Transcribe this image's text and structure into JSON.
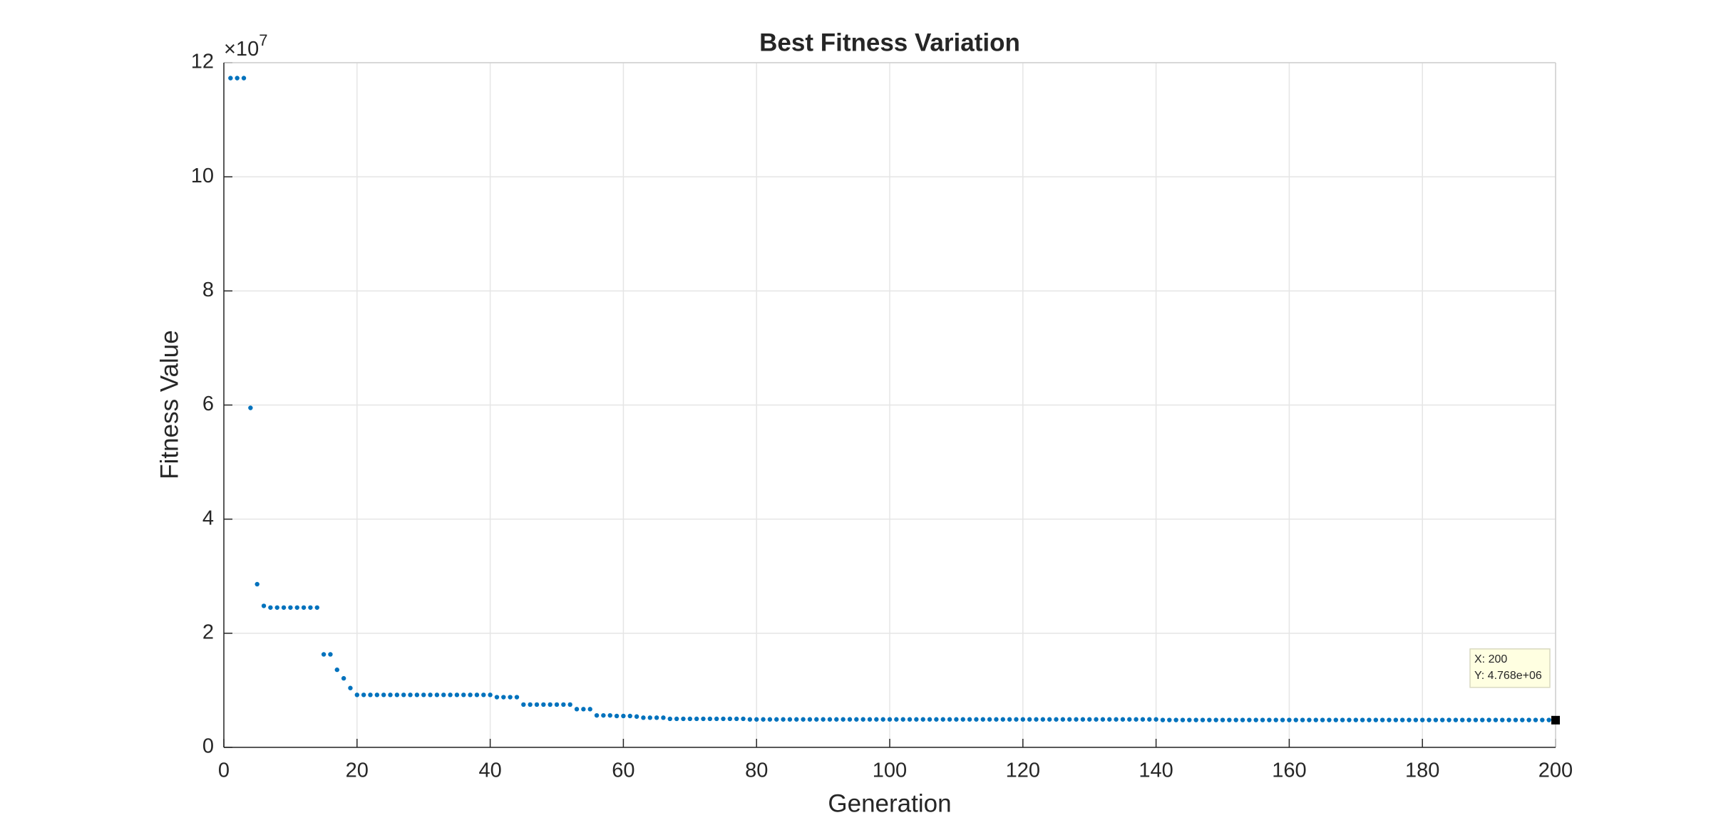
{
  "chart_data": {
    "type": "scatter",
    "title": "Best Fitness Variation",
    "x_label": "Generation",
    "y_label": "Fitness Value",
    "y_exponent": {
      "base": "×10",
      "power": "7"
    },
    "color": "#0072bd",
    "grid": true,
    "xlim": [
      0,
      200
    ],
    "xticks": [
      0,
      20,
      40,
      60,
      80,
      100,
      120,
      140,
      160,
      180,
      200
    ],
    "ylim": [
      0,
      12
    ],
    "yticks": [
      0,
      2,
      4,
      6,
      8,
      10,
      12
    ],
    "x": [
      1,
      2,
      3,
      4,
      5,
      6,
      7,
      8,
      9,
      10,
      11,
      12,
      13,
      14,
      15,
      16,
      17,
      18,
      19,
      20,
      21,
      22,
      23,
      24,
      25,
      26,
      27,
      28,
      29,
      30,
      31,
      32,
      33,
      34,
      35,
      36,
      37,
      38,
      39,
      40,
      41,
      42,
      43,
      44,
      45,
      46,
      47,
      48,
      49,
      50,
      51,
      52,
      53,
      54,
      55,
      56,
      57,
      58,
      59,
      60,
      61,
      62,
      63,
      64,
      65,
      66,
      67,
      68,
      69,
      70,
      71,
      72,
      73,
      74,
      75,
      76,
      77,
      78,
      79,
      80,
      81,
      82,
      83,
      84,
      85,
      86,
      87,
      88,
      89,
      90,
      91,
      92,
      93,
      94,
      95,
      96,
      97,
      98,
      99,
      100,
      101,
      102,
      103,
      104,
      105,
      106,
      107,
      108,
      109,
      110,
      111,
      112,
      113,
      114,
      115,
      116,
      117,
      118,
      119,
      120,
      121,
      122,
      123,
      124,
      125,
      126,
      127,
      128,
      129,
      130,
      131,
      132,
      133,
      134,
      135,
      136,
      137,
      138,
      139,
      140,
      141,
      142,
      143,
      144,
      145,
      146,
      147,
      148,
      149,
      150,
      151,
      152,
      153,
      154,
      155,
      156,
      157,
      158,
      159,
      160,
      161,
      162,
      163,
      164,
      165,
      166,
      167,
      168,
      169,
      170,
      171,
      172,
      173,
      174,
      175,
      176,
      177,
      178,
      179,
      180,
      181,
      182,
      183,
      184,
      185,
      186,
      187,
      188,
      189,
      190,
      191,
      192,
      193,
      194,
      195,
      196,
      197,
      198,
      199,
      200
    ],
    "values": [
      11.73,
      11.73,
      11.73,
      5.95,
      2.86,
      2.48,
      2.45,
      2.45,
      2.45,
      2.45,
      2.45,
      2.45,
      2.45,
      2.45,
      1.63,
      1.63,
      1.36,
      1.21,
      1.04,
      0.92,
      0.92,
      0.92,
      0.92,
      0.92,
      0.92,
      0.92,
      0.92,
      0.92,
      0.92,
      0.92,
      0.92,
      0.92,
      0.92,
      0.92,
      0.92,
      0.92,
      0.92,
      0.92,
      0.92,
      0.92,
      0.88,
      0.88,
      0.88,
      0.88,
      0.75,
      0.75,
      0.75,
      0.75,
      0.75,
      0.75,
      0.75,
      0.75,
      0.67,
      0.67,
      0.67,
      0.56,
      0.56,
      0.56,
      0.55,
      0.55,
      0.55,
      0.54,
      0.52,
      0.52,
      0.52,
      0.52,
      0.5,
      0.5,
      0.5,
      0.5,
      0.5,
      0.5,
      0.5,
      0.5,
      0.5,
      0.5,
      0.5,
      0.5,
      0.49,
      0.49,
      0.49,
      0.49,
      0.49,
      0.49,
      0.49,
      0.49,
      0.49,
      0.49,
      0.49,
      0.49,
      0.49,
      0.49,
      0.49,
      0.49,
      0.49,
      0.49,
      0.49,
      0.49,
      0.49,
      0.49,
      0.49,
      0.49,
      0.49,
      0.49,
      0.49,
      0.49,
      0.49,
      0.49,
      0.49,
      0.49,
      0.49,
      0.49,
      0.49,
      0.49,
      0.49,
      0.49,
      0.49,
      0.49,
      0.49,
      0.49,
      0.49,
      0.49,
      0.49,
      0.49,
      0.49,
      0.49,
      0.49,
      0.49,
      0.49,
      0.49,
      0.49,
      0.49,
      0.49,
      0.49,
      0.49,
      0.49,
      0.49,
      0.49,
      0.49,
      0.49,
      0.48,
      0.48,
      0.48,
      0.48,
      0.48,
      0.48,
      0.48,
      0.48,
      0.48,
      0.48,
      0.48,
      0.48,
      0.48,
      0.48,
      0.48,
      0.48,
      0.48,
      0.48,
      0.48,
      0.48,
      0.48,
      0.48,
      0.48,
      0.48,
      0.48,
      0.48,
      0.48,
      0.48,
      0.48,
      0.48,
      0.48,
      0.48,
      0.48,
      0.48,
      0.48,
      0.48,
      0.48,
      0.48,
      0.48,
      0.48,
      0.48,
      0.48,
      0.48,
      0.48,
      0.48,
      0.48,
      0.48,
      0.48,
      0.48,
      0.48,
      0.48,
      0.48,
      0.48,
      0.48,
      0.48,
      0.48,
      0.48,
      0.48,
      0.48,
      0.4768
    ],
    "datatip": {
      "x_label": "X: 200",
      "y_label": "Y: 4.768e+06"
    }
  }
}
